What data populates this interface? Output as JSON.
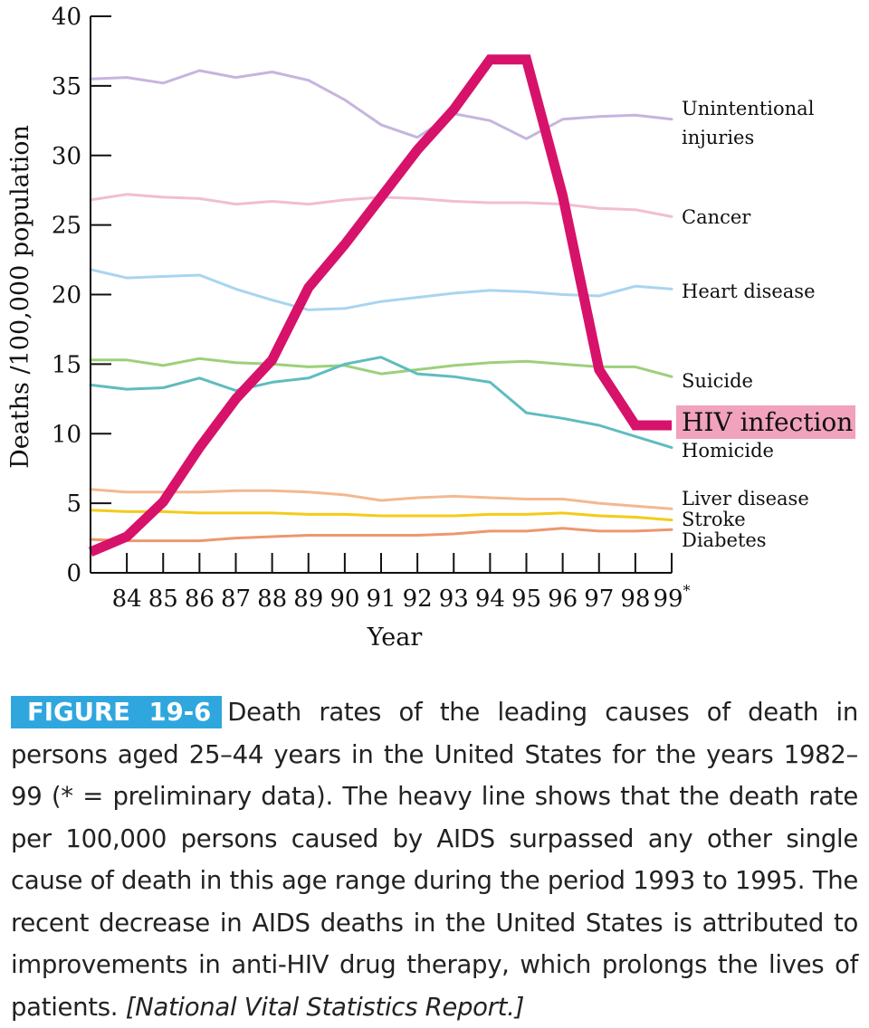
{
  "chart_data": {
    "type": "line",
    "xlabel": "Year",
    "ylabel": "Deaths /100,000 population",
    "ylim": [
      0,
      40
    ],
    "xlim": [
      1983,
      1999
    ],
    "y_ticks": [
      "0",
      "5",
      "10",
      "15",
      "20",
      "25",
      "30",
      "35",
      "40"
    ],
    "x_tick_labels": [
      "84",
      "85",
      "86",
      "87",
      "88",
      "89",
      "90",
      "91",
      "92",
      "93",
      "94",
      "95",
      "96",
      "97",
      "98",
      "99*"
    ],
    "x": [
      1983,
      1984,
      1985,
      1986,
      1987,
      1988,
      1989,
      1990,
      1991,
      1992,
      1993,
      1994,
      1995,
      1996,
      1997,
      1998,
      1999
    ],
    "series": [
      {
        "name": "Unintentional injuries",
        "label_lines": [
          "Unintentional",
          "injuries"
        ],
        "color": "#c5b5de",
        "width": 3,
        "values": [
          35.5,
          35.6,
          35.2,
          36.1,
          35.6,
          36.0,
          35.4,
          34.0,
          32.2,
          31.3,
          33.0,
          32.5,
          31.2,
          32.6,
          32.8,
          32.9,
          32.6
        ]
      },
      {
        "name": "Cancer",
        "label_lines": [
          "Cancer"
        ],
        "color": "#f2bdd2",
        "width": 3,
        "values": [
          26.8,
          27.2,
          27.0,
          26.9,
          26.5,
          26.7,
          26.5,
          26.8,
          27.0,
          26.9,
          26.7,
          26.6,
          26.6,
          26.5,
          26.2,
          26.1,
          25.6
        ]
      },
      {
        "name": "Heart disease",
        "label_lines": [
          "Heart disease"
        ],
        "color": "#a8d5f0",
        "width": 3,
        "values": [
          21.8,
          21.2,
          21.3,
          21.4,
          20.4,
          19.6,
          18.9,
          19.0,
          19.5,
          19.8,
          20.1,
          20.3,
          20.2,
          20.0,
          19.9,
          20.6,
          20.4
        ]
      },
      {
        "name": "Suicide",
        "label_lines": [
          "Suicide"
        ],
        "color": "#9cd07b",
        "width": 3,
        "values": [
          15.3,
          15.3,
          14.9,
          15.4,
          15.1,
          15.0,
          14.8,
          14.9,
          14.3,
          14.6,
          14.9,
          15.1,
          15.2,
          15.0,
          14.8,
          14.8,
          14.1
        ]
      },
      {
        "name": "Homicide",
        "label_lines": [
          "Homicide"
        ],
        "color": "#5fbcbf",
        "width": 3,
        "values": [
          13.5,
          13.2,
          13.3,
          14.0,
          13.1,
          13.7,
          14.0,
          15.0,
          15.5,
          14.3,
          14.1,
          13.7,
          11.5,
          11.1,
          10.6,
          9.8,
          9.0
        ]
      },
      {
        "name": "Liver disease",
        "label_lines": [
          "Liver disease"
        ],
        "color": "#f2b98f",
        "width": 3,
        "values": [
          6.0,
          5.8,
          5.8,
          5.8,
          5.9,
          5.9,
          5.8,
          5.6,
          5.2,
          5.4,
          5.5,
          5.4,
          5.3,
          5.3,
          5.0,
          4.8,
          4.6
        ]
      },
      {
        "name": "Stroke",
        "label_lines": [
          "Stroke"
        ],
        "color": "#f3cc1a",
        "width": 3,
        "values": [
          4.5,
          4.4,
          4.4,
          4.3,
          4.3,
          4.3,
          4.2,
          4.2,
          4.1,
          4.1,
          4.1,
          4.2,
          4.2,
          4.3,
          4.1,
          4.0,
          3.8
        ]
      },
      {
        "name": "Diabetes",
        "label_lines": [
          "Diabetes"
        ],
        "color": "#ed9770",
        "width": 3,
        "values": [
          2.4,
          2.3,
          2.3,
          2.3,
          2.5,
          2.6,
          2.7,
          2.7,
          2.7,
          2.7,
          2.8,
          3.0,
          3.0,
          3.2,
          3.0,
          3.0,
          3.1
        ]
      },
      {
        "name": "HIV infection",
        "label_lines": [
          "HIV infection"
        ],
        "color": "#d7126a",
        "width": 11,
        "highlight": true,
        "highlight_color": "#f1a2bd",
        "values": [
          1.5,
          2.6,
          5.1,
          9.0,
          12.5,
          15.3,
          20.5,
          23.6,
          27.0,
          30.4,
          33.3,
          36.9,
          36.9,
          27.1,
          14.6,
          10.6,
          10.6
        ]
      }
    ]
  },
  "caption": {
    "figure_label": "FIGURE 19-6",
    "text": "Death rates of the leading causes of death in persons aged 25–44 years in the United States for the years 1982–99 (* = preliminary data). The heavy line shows that the death rate per 100,000 persons caused by AIDS surpassed any other single cause of death in this age range during the period 1993 to 1995. The recent decrease in AIDS deaths in the United States is attributed to improvements in anti-HIV drug therapy, which prolongs the lives of patients.",
    "source": "[National Vital Statistics Report.]"
  }
}
